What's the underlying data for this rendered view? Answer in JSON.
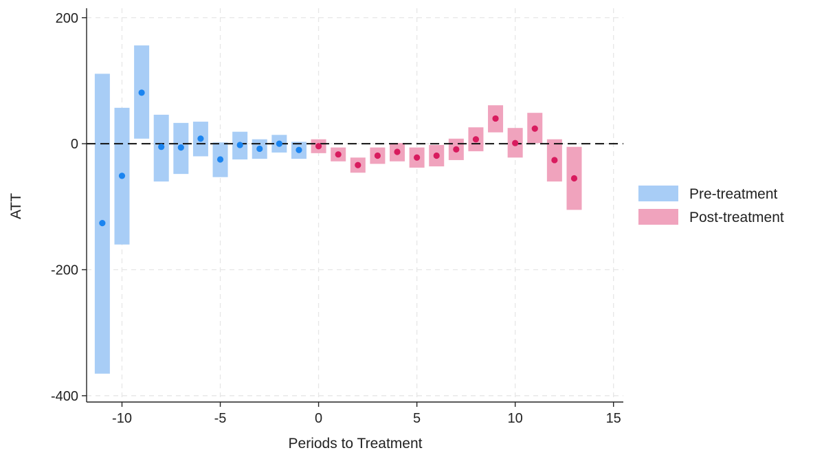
{
  "chart_data": {
    "type": "bar",
    "title": "",
    "xlabel": "Periods to Treatment",
    "ylabel": "ATT",
    "xlim": [
      -11.8,
      15.5
    ],
    "ylim": [
      -410,
      215
    ],
    "xticks": [
      -10,
      -5,
      0,
      5,
      10,
      15
    ],
    "yticks": [
      200,
      0,
      -200,
      -400
    ],
    "xtick_labels": [
      "-10",
      "-5",
      "0",
      "5",
      "10",
      "15"
    ],
    "ytick_labels": [
      "200",
      "0",
      "-200",
      "-400"
    ],
    "grid": true,
    "reference_line": 0,
    "legend_position": "right",
    "series": [
      {
        "name": "Pre-treatment",
        "bar_color": "#a8cdf6",
        "point_color": "#1a84f0",
        "x": [
          -11,
          -10,
          -9,
          -8,
          -7,
          -6,
          -5,
          -4,
          -3,
          -2,
          -1
        ],
        "estimate": [
          -126,
          -51,
          81,
          -5,
          -6,
          8,
          -25,
          -2,
          -8,
          0,
          -10
        ],
        "lower": [
          -365,
          -160,
          8,
          -60,
          -48,
          -20,
          -53,
          -25,
          -24,
          -14,
          -24
        ],
        "upper": [
          111,
          57,
          156,
          46,
          33,
          35,
          2,
          19,
          7,
          14,
          3
        ]
      },
      {
        "name": "Post-treatment",
        "bar_color": "#f0a3bd",
        "point_color": "#d81b5e",
        "x": [
          0,
          1,
          2,
          3,
          4,
          5,
          6,
          7,
          8,
          9,
          10,
          11,
          12,
          13
        ],
        "estimate": [
          -4,
          -17,
          -34,
          -19,
          -13,
          -22,
          -19,
          -9,
          7,
          40,
          1,
          24,
          -26,
          -55
        ],
        "lower": [
          -15,
          -28,
          -46,
          -32,
          -28,
          -38,
          -36,
          -26,
          -12,
          18,
          -22,
          1,
          -60,
          -105
        ],
        "upper": [
          7,
          -6,
          -22,
          -6,
          1,
          -6,
          -2,
          8,
          26,
          61,
          25,
          49,
          7,
          -5
        ]
      }
    ]
  }
}
